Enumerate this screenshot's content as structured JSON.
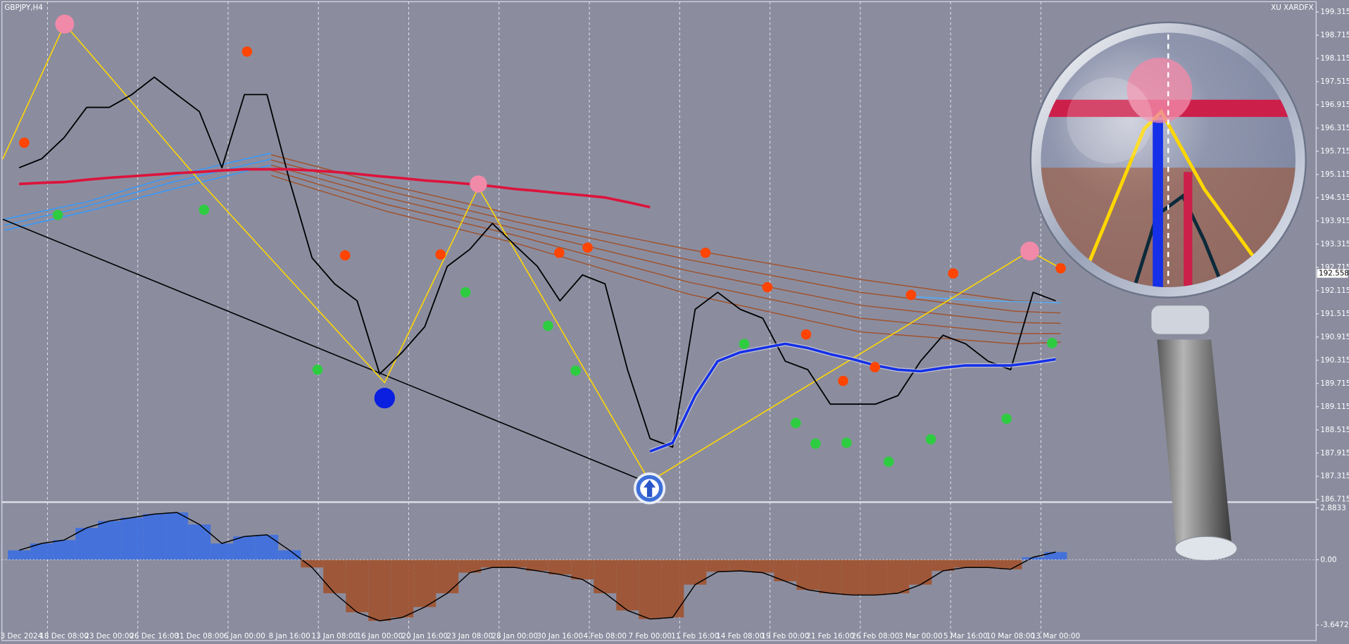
{
  "chart_data": [
    {
      "type": "line",
      "title": "GBPJPY,H4",
      "brand": "XU XARDFX",
      "categories": [
        "13 Dec 2024",
        null,
        "18 Dec 08:00",
        null,
        "23 Dec 00:00",
        null,
        "26 Dec 16:00",
        null,
        "31 Dec 08:00",
        null,
        "6 Jan 00:00",
        null,
        "8 Jan 16:00",
        null,
        "13 Jan 08:00",
        null,
        "16 Jan 00:00",
        null,
        "20 Jan 16:00",
        null,
        "23 Jan 08:00",
        null,
        "28 Jan 00:00",
        null,
        "30 Jan 16:00",
        null,
        "4 Feb 08:00",
        null,
        "7 Feb 00:00",
        null,
        "11 Feb 16:00",
        null,
        "14 Feb 08:00",
        null,
        "19 Feb 00:00",
        null,
        "21 Feb 16:00",
        null,
        "26 Feb 08:00",
        null,
        "3 Mar 00:00",
        null,
        "5 Mar 16:00",
        null,
        "10 Mar 08:00",
        null,
        "13 Mar 00:00"
      ],
      "series": [
        {
          "color": "#000000",
          "values": [
            195.29,
            195.52,
            196.07,
            196.85,
            196.85,
            197.18,
            197.63,
            197.18,
            196.74,
            195.29,
            197.18,
            197.18,
            194.96,
            192.96,
            192.29,
            191.85,
            189.96,
            190.52,
            191.18,
            192.74,
            193.18,
            193.85,
            193.29,
            192.74,
            191.85,
            192.52,
            192.29,
            190.07,
            188.29,
            188.07,
            191.63,
            192.07,
            191.63,
            191.4,
            190.29,
            190.07,
            189.18,
            189.18,
            189.18,
            189.4,
            190.29,
            190.96,
            190.74,
            190.29,
            190.07,
            192.07,
            191.85
          ]
        },
        {
          "color": "#dc143c",
          "values": [
            194.87,
            194.9,
            194.92,
            194.98,
            195.03,
            195.07,
            195.11,
            195.15,
            195.18,
            195.22,
            195.25,
            195.25,
            195.25,
            195.22,
            195.18,
            195.13,
            195.07,
            195.02,
            194.96,
            194.92,
            194.87,
            194.81,
            194.74,
            194.69,
            194.63,
            194.58,
            194.52,
            194.4,
            194.27,
            null,
            null,
            null,
            null,
            null,
            null,
            null,
            null,
            null,
            null,
            null,
            null,
            null,
            null,
            null,
            null,
            null,
            null
          ]
        },
        {
          "color": "#1530e8",
          "values": [
            null,
            null,
            null,
            null,
            null,
            null,
            null,
            null,
            null,
            null,
            null,
            null,
            null,
            null,
            null,
            null,
            null,
            null,
            null,
            null,
            null,
            null,
            null,
            null,
            null,
            null,
            null,
            null,
            187.96,
            188.18,
            189.4,
            190.29,
            190.52,
            190.63,
            190.74,
            190.63,
            190.47,
            190.34,
            190.18,
            190.07,
            190.03,
            190.12,
            190.18,
            190.18,
            190.18,
            190.25,
            190.34
          ]
        }
      ],
      "current_price": 192.558,
      "ylim": [
        186.67,
        199.58
      ],
      "yticks": [
        199.315,
        198.715,
        198.115,
        197.515,
        196.915,
        196.315,
        195.715,
        195.115,
        194.515,
        193.915,
        193.315,
        192.715,
        192.115,
        191.515,
        190.915,
        190.315,
        189.715,
        189.115,
        188.515,
        187.915,
        187.315,
        186.715
      ]
    },
    {
      "type": "bar",
      "up_color": "#3d6fe0",
      "down_color": "#a0522d",
      "values": [
        0.53,
        0.91,
        1.1,
        1.78,
        2.16,
        2.35,
        2.55,
        2.64,
        1.97,
        0.91,
        1.3,
        1.39,
        0.53,
        -0.43,
        -1.87,
        -2.93,
        -3.41,
        -3.22,
        -2.64,
        -1.87,
        -0.72,
        -0.43,
        -0.43,
        -0.62,
        -0.82,
        -1.1,
        -1.87,
        -2.83,
        -3.31,
        -3.22,
        -1.39,
        -0.67,
        -0.62,
        -0.72,
        -1.2,
        -1.68,
        -1.87,
        -1.97,
        -1.97,
        -1.87,
        -1.39,
        -0.62,
        -0.43,
        -0.43,
        -0.53,
        0.14,
        0.43
      ],
      "ylim": [
        -4.51,
        3.12
      ],
      "yticks": [
        2.8833,
        {
          "value": 0,
          "label": "0.00"
        },
        -3.6472
      ]
    }
  ]
}
